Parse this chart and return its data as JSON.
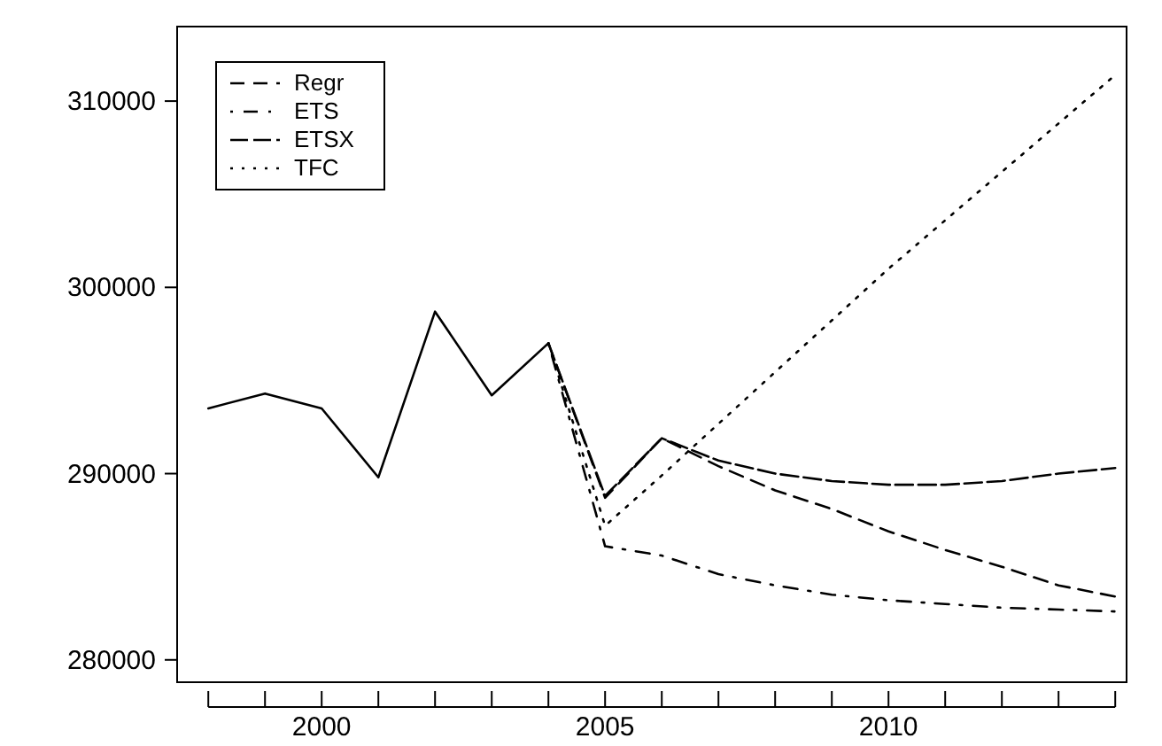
{
  "chart_data": {
    "type": "line",
    "xlim": [
      1997.45,
      2014.2
    ],
    "ylim": [
      278800,
      314000
    ],
    "xticks": [
      {
        "value": 1998,
        "label": null
      },
      {
        "value": 1999,
        "label": null
      },
      2000,
      {
        "value": 2001,
        "label": null
      },
      {
        "value": 2002,
        "label": null
      },
      {
        "value": 2003,
        "label": null
      },
      {
        "value": 2004,
        "label": null
      },
      2005,
      {
        "value": 2006,
        "label": null
      },
      {
        "value": 2007,
        "label": null
      },
      {
        "value": 2008,
        "label": null
      },
      {
        "value": 2009,
        "label": null
      },
      2010,
      {
        "value": 2011,
        "label": null
      },
      {
        "value": 2012,
        "label": null
      },
      {
        "value": 2013,
        "label": null
      },
      {
        "value": 2014,
        "label": null
      }
    ],
    "yticks": [
      280000,
      290000,
      300000,
      310000
    ],
    "grid": false,
    "legend": "top left",
    "series": [
      {
        "color": "#000000",
        "line_style": "solid",
        "x": [
          1998,
          1999,
          2000,
          2001,
          2002,
          2003,
          2004
        ],
        "values": [
          293500,
          294300,
          293500,
          289800,
          298700,
          294200,
          297000
        ]
      },
      {
        "name": "Regr",
        "color": "#000000",
        "line_style": "dashed",
        "x": [
          2004,
          2005,
          2006,
          2007,
          2008,
          2009,
          2010,
          2011,
          2012,
          2013,
          2014
        ],
        "values": [
          297000,
          288700,
          291900,
          290400,
          289100,
          288100,
          286900,
          285900,
          285000,
          284000,
          283400
        ]
      },
      {
        "name": "ETS",
        "color": "#000000",
        "line_style": "dashdot",
        "x": [
          2004,
          2005,
          2006,
          2007,
          2008,
          2009,
          2010,
          2011,
          2012,
          2013,
          2014
        ],
        "values": [
          297000,
          286100,
          285600,
          284600,
          284000,
          283500,
          283200,
          283000,
          282800,
          282700,
          282600
        ]
      },
      {
        "name": "ETSX",
        "color": "#000000",
        "line_style": "longdash",
        "x": [
          2004,
          2005,
          2006,
          2007,
          2008,
          2009,
          2010,
          2011,
          2012,
          2013,
          2014
        ],
        "values": [
          297000,
          288800,
          291900,
          290700,
          290000,
          289600,
          289400,
          289400,
          289600,
          290000,
          290300
        ]
      },
      {
        "name": "TFC",
        "color": "#000000",
        "line_style": "dotted",
        "x": [
          2004,
          2005,
          2006,
          2010,
          2014
        ],
        "values": [
          297000,
          287200,
          289900,
          301000,
          311400
        ]
      }
    ]
  }
}
